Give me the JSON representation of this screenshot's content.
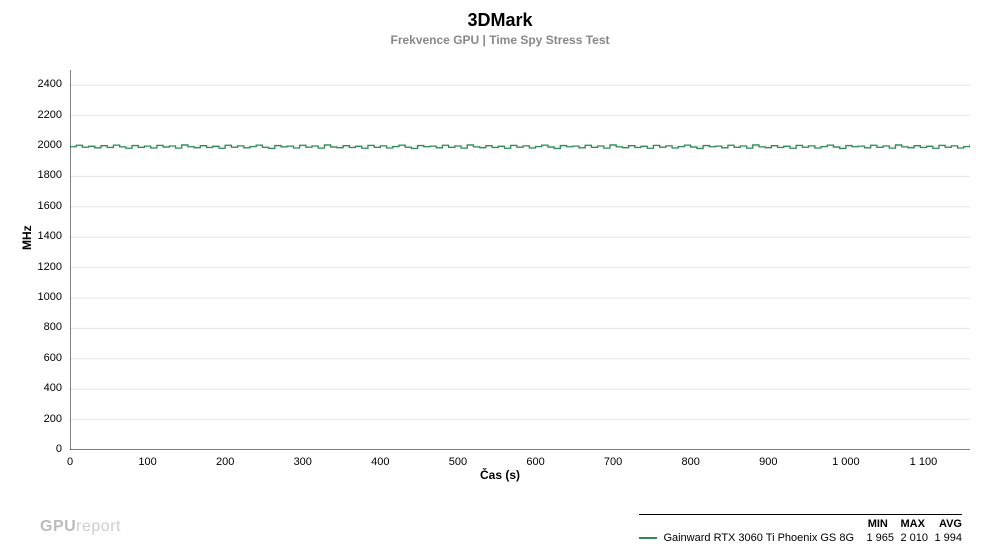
{
  "chart": {
    "type": "line",
    "title": "3DMark",
    "subtitle": "Frekvence GPU | Time Spy Stress Test",
    "xlabel": "Čas (s)",
    "ylabel": "MHz",
    "background_color": "#ffffff",
    "plot_border_color": "#000000",
    "grid_color": "#e6e6e6",
    "xlim": [
      0,
      1160
    ],
    "ylim": [
      0,
      2500
    ],
    "xticks": [
      0,
      100,
      200,
      300,
      400,
      500,
      600,
      700,
      800,
      900,
      1000,
      1100
    ],
    "xtick_labels": [
      "0",
      "100",
      "200",
      "300",
      "400",
      "500",
      "600",
      "700",
      "800",
      "900",
      "1 000",
      "1 100"
    ],
    "yticks": [
      0,
      200,
      400,
      600,
      800,
      1000,
      1200,
      1400,
      1600,
      1800,
      2000,
      2200,
      2400
    ],
    "ytick_labels": [
      "0",
      "200",
      "400",
      "600",
      "800",
      "1000",
      "1200",
      "1400",
      "1600",
      "1800",
      "2000",
      "2200",
      "2400"
    ],
    "title_fontsize": 18,
    "subtitle_fontsize": 12,
    "label_fontsize": 12,
    "tick_fontsize": 11,
    "line_width": 1.3,
    "series": [
      {
        "name": "Gainward RTX 3060 Ti Phoenix GS 8G",
        "color": "#2e8b57",
        "min": "1 965",
        "max": "2 010",
        "avg": "1 994",
        "x": [
          0,
          8,
          16,
          24,
          32,
          40,
          48,
          56,
          64,
          72,
          80,
          88,
          96,
          104,
          112,
          120,
          128,
          136,
          144,
          152,
          160,
          168,
          176,
          184,
          192,
          200,
          208,
          216,
          224,
          232,
          240,
          248,
          256,
          264,
          272,
          280,
          288,
          296,
          304,
          312,
          320,
          328,
          336,
          344,
          352,
          360,
          368,
          376,
          384,
          392,
          400,
          408,
          416,
          424,
          432,
          440,
          448,
          456,
          464,
          472,
          480,
          488,
          496,
          504,
          512,
          520,
          528,
          536,
          544,
          552,
          560,
          568,
          576,
          584,
          592,
          600,
          608,
          616,
          624,
          632,
          640,
          648,
          656,
          664,
          672,
          680,
          688,
          696,
          704,
          712,
          720,
          728,
          736,
          744,
          752,
          760,
          768,
          776,
          784,
          792,
          800,
          808,
          816,
          824,
          832,
          840,
          848,
          856,
          864,
          872,
          880,
          888,
          896,
          904,
          912,
          920,
          928,
          936,
          944,
          952,
          960,
          968,
          976,
          984,
          992,
          1000,
          1008,
          1016,
          1024,
          1032,
          1040,
          1048,
          1056,
          1064,
          1072,
          1080,
          1088,
          1096,
          1104,
          1112,
          1120,
          1128,
          1136,
          1144,
          1152,
          1160
        ],
        "y": [
          1995,
          2005,
          1992,
          1998,
          1988,
          2002,
          1990,
          2006,
          1994,
          1985,
          2003,
          1991,
          1999,
          1987,
          2004,
          1993,
          2000,
          1986,
          2007,
          1995,
          1989,
          2002,
          1990,
          1998,
          1985,
          2005,
          1992,
          2001,
          1988,
          1996,
          2006,
          1991,
          1984,
          2003,
          1994,
          1999,
          1987,
          2005,
          1992,
          2000,
          1986,
          2007,
          1993,
          1989,
          2002,
          1990,
          1998,
          1985,
          2004,
          1991,
          2001,
          1987,
          1996,
          2006,
          1992,
          1984,
          2003,
          1995,
          1999,
          1988,
          2005,
          1991,
          2000,
          1986,
          2007,
          1994,
          1989,
          2002,
          1990,
          1998,
          1985,
          2004,
          1992,
          2001,
          1987,
          1996,
          2006,
          1993,
          1984,
          2003,
          1995,
          1999,
          1988,
          2005,
          1991,
          2000,
          1986,
          2007,
          1994,
          1989,
          2002,
          1990,
          1998,
          1985,
          2004,
          1992,
          2001,
          1987,
          1996,
          2006,
          1993,
          1984,
          2003,
          1995,
          1999,
          1988,
          2005,
          1991,
          2000,
          1986,
          2007,
          1994,
          1989,
          2002,
          1990,
          1998,
          1985,
          2004,
          1992,
          2001,
          1987,
          1996,
          2006,
          1993,
          1984,
          2003,
          1995,
          1999,
          1988,
          2005,
          1991,
          2000,
          1986,
          2007,
          1994,
          1989,
          2002,
          1990,
          1998,
          1985,
          2004,
          1992,
          2001,
          1987,
          1996,
          2010
        ]
      }
    ]
  },
  "legend": {
    "headers": [
      "MIN",
      "MAX",
      "AVG"
    ]
  },
  "watermark": {
    "bold": "GPU",
    "light": "report"
  }
}
